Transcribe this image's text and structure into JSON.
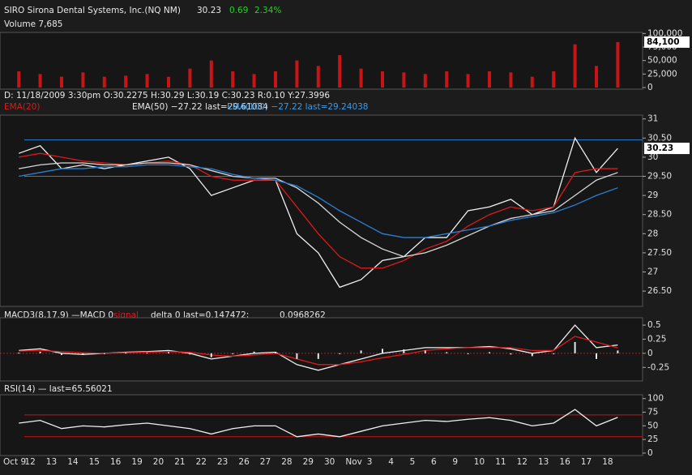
{
  "header": {
    "title": "SIRO Sirona Dental Systems, Inc.(NQ NM)",
    "last": "30.23",
    "change": "0.69",
    "change_pct": "2.34%",
    "volume": "Volume 7,685",
    "info": "D: 11/18/2009    3:30pm O:30.2275 H:30.29 L:30.19 C:30.23 R:0.10 Y:27.3996",
    "ema20": "EMA(20)",
    "ema50": "EMA(50) −27.22 last=29.61084",
    "ema100": "EMA(100) −27.22 last=29.24038",
    "macd_title": "MACD3(8,17,9) —MACD 0",
    "macd_signal": "signal",
    "macd_delta": "delta 0 last=0.147472;",
    "macd_last": "0.0968262",
    "rsi_title": "RSI(14) — last=65.56021"
  },
  "chart_data": [
    {
      "type": "bar",
      "color": "#c81414",
      "values": [
        30000,
        25000,
        20000,
        28000,
        20000,
        22000,
        25000,
        20000,
        35000,
        50000,
        30000,
        25000,
        30000,
        50000,
        40000,
        60000,
        35000,
        30000,
        28000,
        25000,
        30000,
        25000,
        30000,
        28000,
        20000,
        30000,
        80000,
        40000,
        84100
      ],
      "value_labels": [
        null,
        null,
        null,
        null,
        null,
        null,
        null,
        null,
        null,
        null,
        null,
        null,
        null,
        null,
        null,
        null,
        null,
        null,
        null,
        null,
        null,
        null,
        null,
        null,
        null,
        null,
        null,
        null,
        "84,100"
      ],
      "ylim": [
        -3000,
        102000
      ],
      "yticks": [
        0,
        {
          "value": 25000,
          "label": "25,000"
        },
        {
          "value": 50000,
          "label": "50,000"
        },
        {
          "value": 75000,
          "label": "75,000"
        },
        {
          "value": 100000,
          "label": "100,000"
        }
      ]
    },
    {
      "type": "line",
      "series": [
        {
          "color": "#f0f0f0",
          "values": [
            30.1,
            30.3,
            29.7,
            29.8,
            29.7,
            29.8,
            29.9,
            30.0,
            29.7,
            29.0,
            29.2,
            29.4,
            29.4,
            28.0,
            27.5,
            26.6,
            26.8,
            27.3,
            27.4,
            27.9,
            27.9,
            28.6,
            28.7,
            28.9,
            28.5,
            28.7,
            30.5,
            29.6,
            30.23
          ]
        },
        {
          "color": "#e01818",
          "values": [
            30.0,
            30.1,
            30.0,
            29.9,
            29.85,
            29.8,
            29.85,
            29.9,
            29.8,
            29.5,
            29.4,
            29.4,
            29.4,
            28.7,
            28.0,
            27.4,
            27.1,
            27.1,
            27.3,
            27.6,
            27.8,
            28.2,
            28.5,
            28.7,
            28.6,
            28.7,
            29.6,
            29.7,
            29.7
          ]
        },
        {
          "color": "#d8d8d8",
          "values": [
            29.7,
            29.8,
            29.85,
            29.85,
            29.8,
            29.8,
            29.85,
            29.85,
            29.8,
            29.65,
            29.5,
            29.45,
            29.45,
            29.2,
            28.8,
            28.3,
            27.9,
            27.6,
            27.4,
            27.5,
            27.7,
            27.95,
            28.2,
            28.4,
            28.5,
            28.6,
            29.0,
            29.4,
            29.6
          ]
        },
        {
          "color": "#2a7fd4",
          "values": [
            29.5,
            29.6,
            29.7,
            29.7,
            29.75,
            29.75,
            29.8,
            29.8,
            29.75,
            29.7,
            29.55,
            29.45,
            29.4,
            29.25,
            28.95,
            28.6,
            28.3,
            28.0,
            27.9,
            27.9,
            28.0,
            28.1,
            28.2,
            28.35,
            28.45,
            28.55,
            28.75,
            29.0,
            29.2
          ]
        }
      ],
      "hlines": [
        30.45,
        29.5
      ],
      "hline_color": "#2a7fd4",
      "ylim": [
        26.1,
        31.1
      ],
      "yticks": [
        {
          "value": 26.5,
          "label": "26.50"
        },
        27,
        {
          "value": 27.5,
          "label": "27.50"
        },
        28,
        {
          "value": 28.5,
          "label": "28.50"
        },
        29,
        {
          "value": 29.5,
          "label": "29.50"
        },
        30,
        {
          "value": 30.5,
          "label": "30.50"
        },
        31
      ]
    },
    {
      "type": "line",
      "series": [
        {
          "color": "#f0f0f0",
          "values": [
            0.05,
            0.08,
            0,
            -0.02,
            0,
            0.02,
            0.03,
            0.05,
            0,
            -0.1,
            -0.05,
            0,
            0.02,
            -0.2,
            -0.3,
            -0.2,
            -0.1,
            0,
            0.05,
            0.1,
            0.1,
            0.1,
            0.12,
            0.08,
            0,
            0.05,
            0.5,
            0.1,
            0.147472
          ]
        },
        {
          "color": "#e01818",
          "values": [
            0.04,
            0.05,
            0.03,
            0.01,
            0,
            0.01,
            0.02,
            0.03,
            0.02,
            -0.03,
            -0.05,
            -0.03,
            0,
            -0.1,
            -0.2,
            -0.2,
            -0.15,
            -0.08,
            -0.02,
            0.05,
            0.08,
            0.1,
            0.1,
            0.1,
            0.05,
            0.05,
            0.3,
            0.2,
            0.0968262
          ]
        },
        {
          "color": "#e8e8e8",
          "kind": "bar",
          "values": [
            0.01,
            0.03,
            -0.03,
            -0.03,
            0,
            0.01,
            0.01,
            0.02,
            -0.02,
            -0.07,
            0,
            0.03,
            0.02,
            -0.1,
            -0.1,
            0,
            0.05,
            0.08,
            0.07,
            0.05,
            0.02,
            0,
            0.02,
            -0.02,
            -0.05,
            0,
            0.2,
            -0.1,
            0.05
          ]
        }
      ],
      "zero_color": "#c81414",
      "ylim": [
        -0.49,
        0.63
      ],
      "yticks": [
        -0.25,
        0,
        0.25,
        0.5
      ]
    },
    {
      "type": "line",
      "series": [
        {
          "color": "#f0f0f0",
          "values": [
            55,
            60,
            45,
            50,
            48,
            52,
            55,
            50,
            45,
            35,
            45,
            50,
            50,
            30,
            35,
            30,
            40,
            50,
            55,
            60,
            58,
            62,
            65,
            60,
            50,
            55,
            80,
            50,
            65.56021
          ]
        }
      ],
      "hlines": [
        30,
        70
      ],
      "hline_color": "#d01010",
      "ylim": [
        -4.5,
        107
      ],
      "yticks": [
        0,
        25,
        50,
        75,
        100
      ],
      "categories": [
        "Oct 9",
        "12",
        "13",
        "14",
        "15",
        "16",
        "19",
        "20",
        "21",
        "22",
        "23",
        "26",
        "27",
        "28",
        "29",
        "30",
        "Nov",
        "3",
        "4",
        "5",
        "6",
        "9",
        "10",
        "11",
        "12",
        "13",
        "16",
        "17",
        "18"
      ]
    }
  ]
}
